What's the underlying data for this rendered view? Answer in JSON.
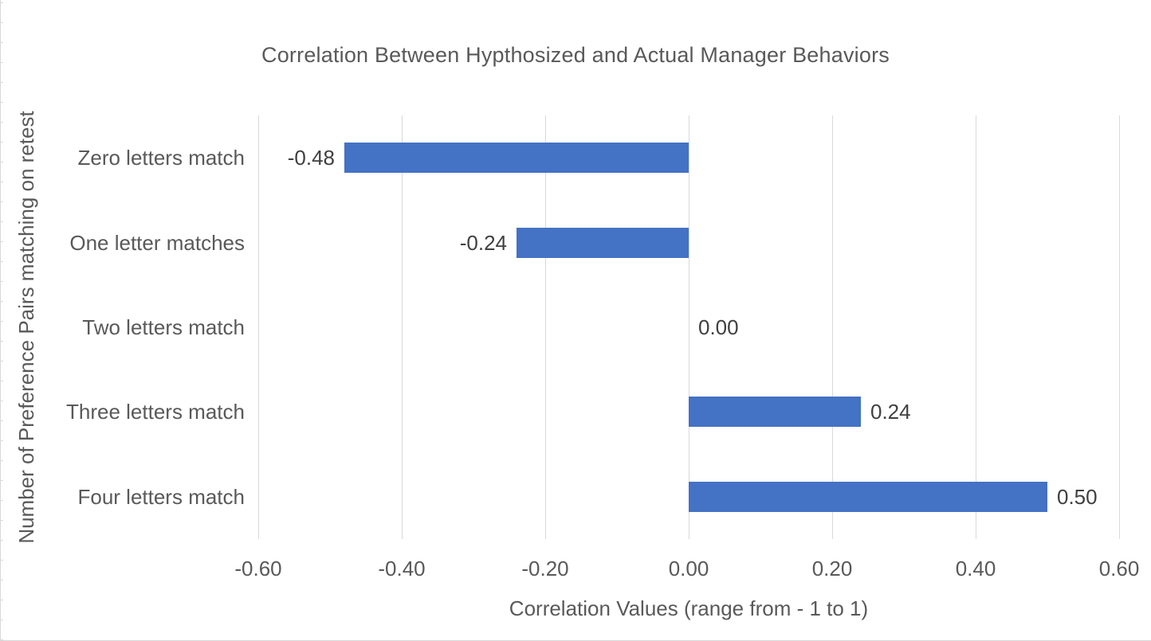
{
  "chart": {
    "title": "Correlation Between Hypthosized and Actual Manager Behaviors",
    "x_axis_title": "Correlation Values (range from - 1 to 1)",
    "y_axis_title": "Number of Preference Pairs matching on retest"
  },
  "chart_data": {
    "type": "bar",
    "orientation": "horizontal",
    "title": "Correlation Between Hypthosized and Actual Manager Behaviors",
    "xlabel": "Correlation Values (range from - 1 to 1)",
    "ylabel": "Number of Preference Pairs matching on retest",
    "categories": [
      "Zero letters match",
      "One letter matches",
      "Two letters match",
      "Three letters match",
      "Four letters match"
    ],
    "values": [
      -0.48,
      -0.24,
      0,
      0.24,
      0.5
    ],
    "data_labels": [
      "-0.48",
      "-0.24",
      "0.00",
      "0.24",
      "0.50"
    ],
    "xlim": [
      -0.6,
      0.6
    ],
    "x_ticks": [
      -0.6,
      -0.4,
      -0.2,
      0,
      0.2,
      0.4,
      0.6
    ],
    "x_tick_labels": [
      "-0.60",
      "-0.40",
      "-0.20",
      "0.00",
      "0.20",
      "0.40",
      "0.60"
    ],
    "grid": true,
    "legend": false,
    "colors": {
      "bar": "#4472C4",
      "gridline": "#D9D9D9",
      "axis_text": "#595959",
      "data_label": "#404040"
    }
  }
}
